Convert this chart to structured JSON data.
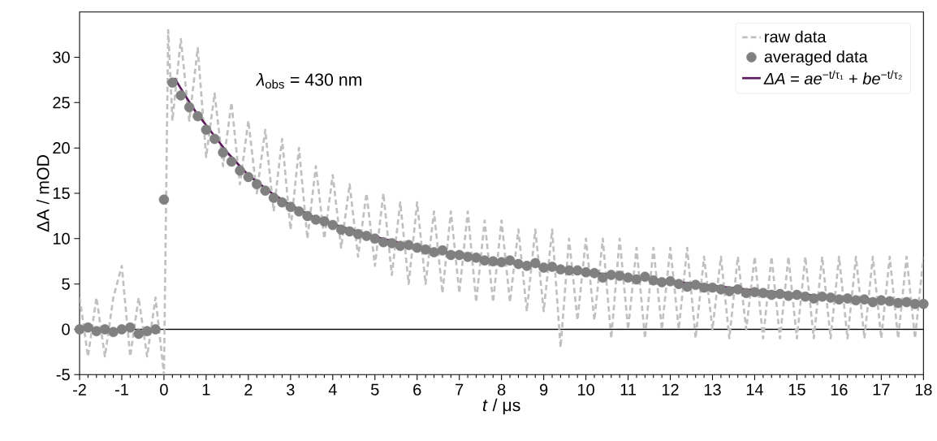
{
  "chart_data": {
    "type": "line",
    "xlabel": "*t* / μs",
    "ylabel": "ΔA / mOD",
    "xlim": [
      -2,
      18
    ],
    "xticks": [
      -2,
      -1,
      0,
      1,
      2,
      3,
      4,
      5,
      6,
      7,
      8,
      9,
      10,
      11,
      12,
      13,
      14,
      15,
      16,
      17,
      18
    ],
    "ylim": [
      -5,
      35
    ],
    "yticks": [
      -5,
      0,
      5,
      10,
      15,
      20,
      25,
      30
    ],
    "grid": false,
    "legend": "top right",
    "annotations": [
      "*λ*$_{obs}$ = 430 nm"
    ],
    "ref_lines": [
      {
        "axis": "y",
        "value": 0,
        "color": "#000000",
        "line_style": "solid"
      }
    ],
    "series": [
      {
        "name": "raw data",
        "line_style": "dashed",
        "color": "#c0c0c0",
        "x": [
          -2,
          -1.8,
          -1.6,
          -1.4,
          -1.2,
          -1,
          -0.8,
          -0.6,
          -0.4,
          -0.2,
          0,
          0.1,
          0.2,
          0.4,
          0.6,
          0.8,
          1,
          1.2,
          1.4,
          1.6,
          1.8,
          2,
          2.2,
          2.4,
          2.6,
          2.8,
          3,
          3.2,
          3.4,
          3.6,
          3.8,
          4,
          4.2,
          4.4,
          4.6,
          4.8,
          5,
          5.2,
          5.4,
          5.6,
          5.8,
          6,
          6.2,
          6.4,
          6.6,
          6.8,
          7,
          7.2,
          7.4,
          7.6,
          7.8,
          8,
          8.2,
          8.4,
          8.6,
          8.8,
          9,
          9.2,
          9.4,
          9.6,
          9.8,
          10,
          10.2,
          10.4,
          10.6,
          10.8,
          11,
          11.2,
          11.4,
          11.6,
          11.8,
          12,
          12.2,
          12.4,
          12.6,
          12.8,
          13,
          13.2,
          13.4,
          13.6,
          13.8,
          14,
          14.2,
          14.4,
          14.6,
          14.8,
          15,
          15.2,
          15.4,
          15.6,
          15.8,
          16,
          16.2,
          16.4,
          16.6,
          16.8,
          17,
          17.2,
          17.4,
          17.6,
          17.8,
          18
        ],
        "values": [
          3.5,
          -3,
          3.5,
          -3,
          3.5,
          7,
          -3,
          3.5,
          -3,
          3.5,
          -5,
          33,
          23,
          32,
          23,
          31,
          19,
          26,
          18,
          25,
          16,
          23,
          15,
          22,
          13,
          21,
          11,
          20,
          10,
          18,
          10,
          17,
          9,
          16,
          8,
          15,
          7,
          15,
          6,
          14,
          5,
          14,
          5,
          13,
          4,
          13,
          4,
          13,
          3,
          12,
          3,
          12,
          3,
          11,
          2,
          11,
          2,
          11,
          -2,
          10,
          1,
          10,
          1,
          10,
          -1,
          10,
          0,
          9,
          -1,
          9,
          0,
          9,
          0,
          9,
          -1,
          8,
          0,
          8,
          -1,
          8,
          0,
          8,
          -1,
          8,
          -1,
          8,
          -1,
          8,
          -1,
          8,
          -1,
          8,
          -1,
          8,
          -1,
          8,
          -1,
          8,
          -1,
          8,
          -1,
          8
        ]
      },
      {
        "name": "averaged data",
        "type": "scatter",
        "marker": "circle",
        "color": "#808080",
        "x": [
          -2,
          -1.8,
          -1.6,
          -1.4,
          -1.2,
          -1,
          -0.8,
          -0.6,
          -0.4,
          -0.2,
          0,
          0.2,
          0.4,
          0.6,
          0.8,
          1,
          1.2,
          1.4,
          1.6,
          1.8,
          2,
          2.2,
          2.4,
          2.6,
          2.8,
          3,
          3.2,
          3.4,
          3.6,
          3.8,
          4,
          4.2,
          4.4,
          4.6,
          4.8,
          5,
          5.2,
          5.4,
          5.6,
          5.8,
          6,
          6.2,
          6.4,
          6.6,
          6.8,
          7,
          7.2,
          7.4,
          7.6,
          7.8,
          8,
          8.2,
          8.4,
          8.6,
          8.8,
          9,
          9.2,
          9.4,
          9.6,
          9.8,
          10,
          10.2,
          10.4,
          10.6,
          10.8,
          11,
          11.2,
          11.4,
          11.6,
          11.8,
          12,
          12.2,
          12.4,
          12.6,
          12.8,
          13,
          13.2,
          13.4,
          13.6,
          13.8,
          14,
          14.2,
          14.4,
          14.6,
          14.8,
          15,
          15.2,
          15.4,
          15.6,
          15.8,
          16,
          16.2,
          16.4,
          16.6,
          16.8,
          17,
          17.2,
          17.4,
          17.6,
          17.8,
          18
        ],
        "values": [
          0,
          0.2,
          -0.2,
          0,
          -0.3,
          0,
          0.2,
          -0.5,
          -0.2,
          0,
          14.3,
          27.2,
          25.8,
          24.5,
          23.5,
          22,
          21,
          19.5,
          18.5,
          17.5,
          16.8,
          16,
          15.3,
          14.5,
          14,
          13.5,
          13,
          12.5,
          12.1,
          11.9,
          11.5,
          11,
          10.8,
          10.5,
          10.3,
          10,
          9.6,
          9.5,
          9.2,
          9.3,
          9,
          8.8,
          8.5,
          8.7,
          8.2,
          8.2,
          8,
          7.9,
          7.6,
          7.5,
          7.4,
          7.6,
          7.2,
          7,
          7.3,
          6.8,
          6.9,
          6.6,
          6.5,
          6.5,
          6.3,
          6.2,
          5.7,
          6,
          5.9,
          5.7,
          5.5,
          5.8,
          5.4,
          5.2,
          5.3,
          5,
          4.7,
          4.9,
          4.6,
          4.6,
          4.4,
          4.2,
          4.4,
          4,
          4.1,
          4,
          3.8,
          3.9,
          3.7,
          3.8,
          3.6,
          3.4,
          3.6,
          3.5,
          3.3,
          3.4,
          3.2,
          3.3,
          3,
          3.2,
          3.1,
          2.9,
          3,
          2.8,
          2.8
        ]
      },
      {
        "name": "*ΔA* = *ae*$^{−t/τ₁}$ + *be*$^{−t/τ₂}$",
        "line_style": "solid",
        "color": "#5c1a5c",
        "x": [
          0.25,
          0.5,
          0.75,
          1,
          1.5,
          2,
          2.5,
          3,
          3.5,
          4,
          5,
          6,
          7,
          8,
          9,
          10,
          11,
          12,
          13,
          14,
          15,
          16,
          17,
          18
        ],
        "values": [
          27.7,
          25.8,
          24,
          22.5,
          19.5,
          17,
          15.2,
          13.7,
          12.5,
          11.6,
          10.2,
          9.1,
          8.2,
          7.5,
          6.9,
          6.3,
          5.8,
          5.3,
          4.8,
          4.3,
          3.9,
          3.5,
          3.2,
          2.9
        ]
      }
    ]
  }
}
